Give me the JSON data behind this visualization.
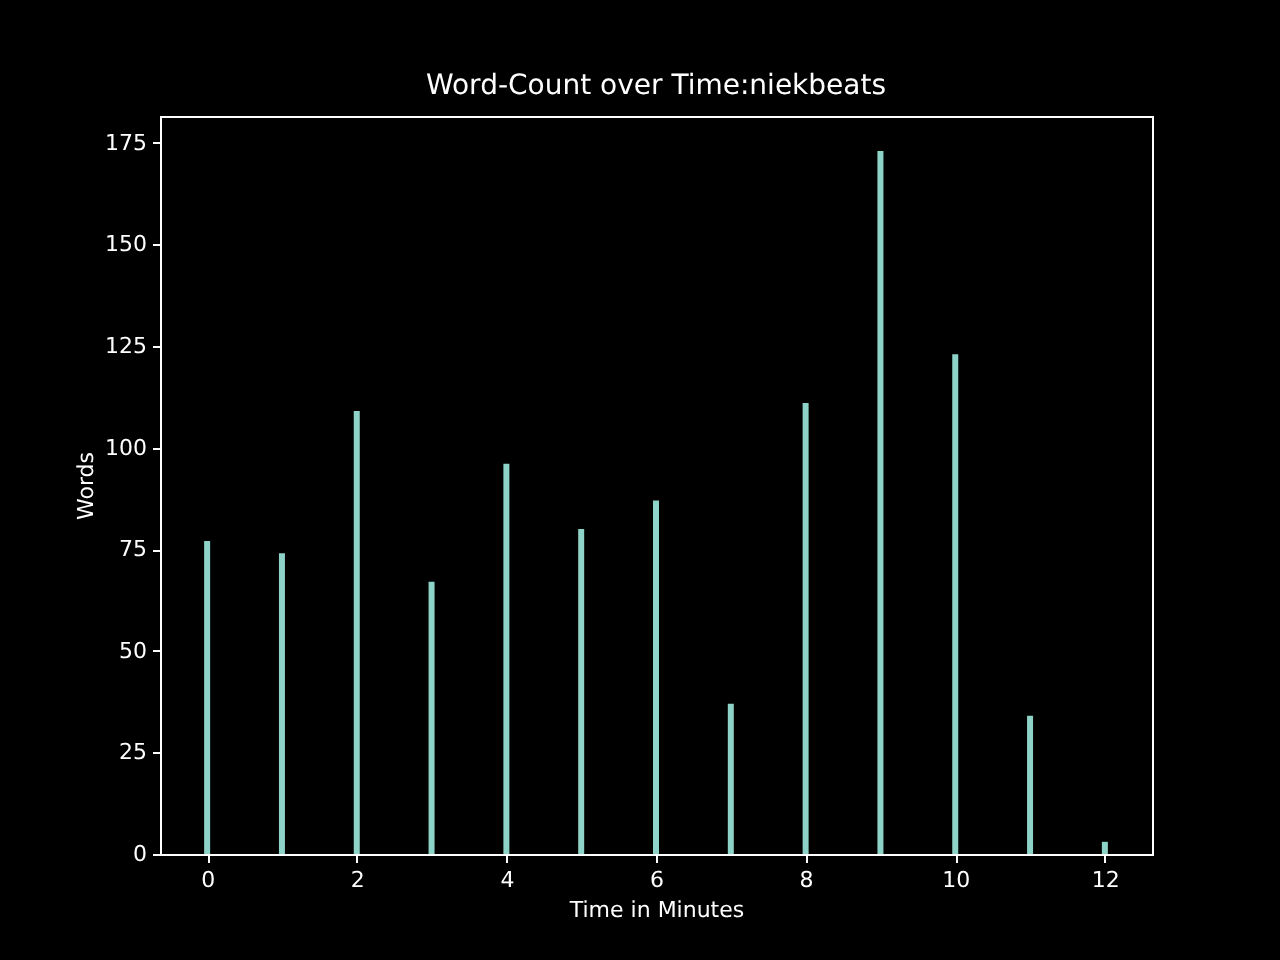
{
  "chart_data": {
    "type": "bar",
    "title": "Word-Count over Time:niekbeats",
    "xlabel": "Time in Minutes",
    "ylabel": "Words",
    "x": [
      0,
      1,
      2,
      3,
      4,
      5,
      6,
      7,
      8,
      9,
      10,
      11,
      12
    ],
    "values": [
      77,
      74,
      109,
      67,
      96,
      80,
      87,
      37,
      111,
      173,
      123,
      34,
      3
    ],
    "color": "#8dd3c7",
    "xlim": [
      -0.63,
      12.63
    ],
    "xticks": [
      0,
      2,
      4,
      6,
      8,
      10,
      12
    ],
    "ylim": [
      0,
      181.6
    ],
    "yticks": [
      0,
      25,
      50,
      75,
      100,
      125,
      150,
      175
    ],
    "grid": false
  }
}
